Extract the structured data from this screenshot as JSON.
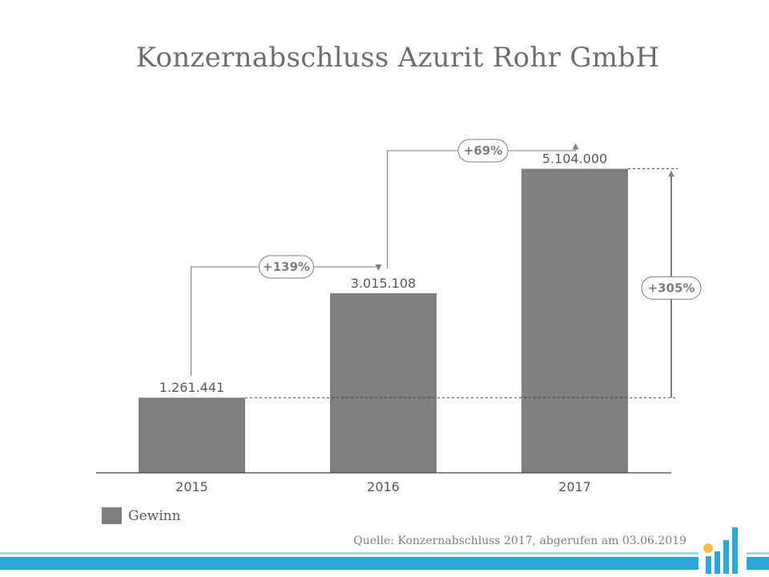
{
  "chart_data": {
    "type": "bar",
    "title": "Konzernabschluss Azurit Rohr GmbH",
    "categories": [
      "2015",
      "2016",
      "2017"
    ],
    "series": [
      {
        "name": "Gewinn",
        "values": [
          1261441,
          3015108,
          5104000
        ],
        "color": "#7f7f7f"
      }
    ],
    "value_labels": [
      "1.261.441",
      "3.015.108",
      "5.104.000"
    ],
    "ylim": [
      0,
      6000000
    ],
    "grid": false,
    "legend": "bottom-left",
    "annotations": [
      {
        "label": "+139%",
        "from": "2015",
        "to": "2016"
      },
      {
        "label": "+69%",
        "from": "2016",
        "to": "2017"
      },
      {
        "label": "+305%",
        "from": "2015",
        "to": "2017"
      }
    ]
  },
  "source": "Quelle: Konzernabschluss 2017, abgerufen am 03.06.2019",
  "colors": {
    "bar": "#7f7f7f",
    "accent": "#2ba7d9",
    "text": "#595959"
  },
  "logo_icon": "bar-chart-logo-icon"
}
